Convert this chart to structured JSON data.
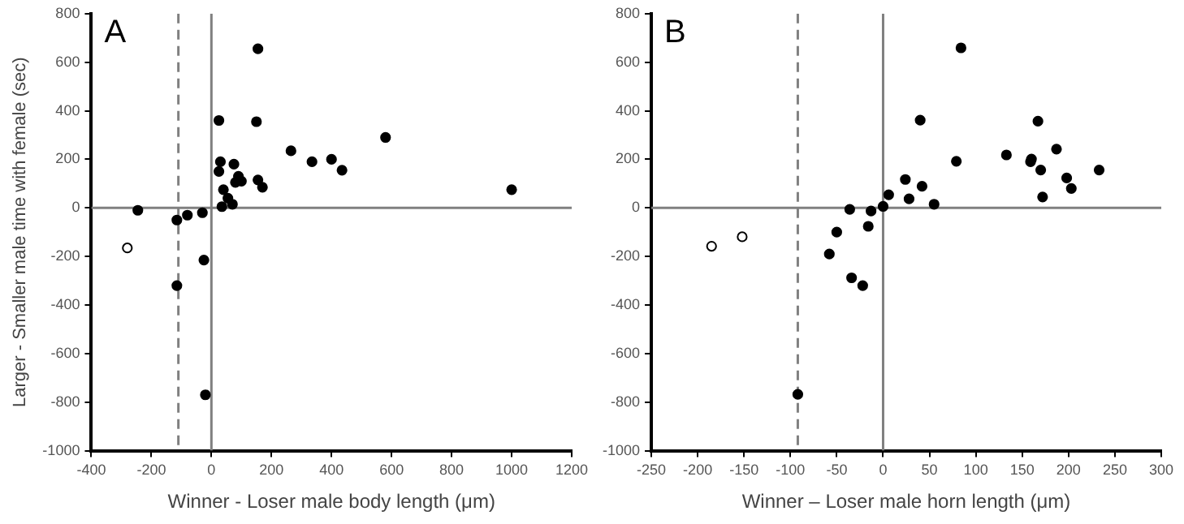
{
  "chart_data": [
    {
      "type": "scatter",
      "title": "A",
      "xlabel": "Winner - Loser male body length (μm)",
      "ylabel": "Larger - Smaller male time with female (sec)",
      "xlim": [
        -400,
        1200
      ],
      "xticks": [
        -400,
        -200,
        0,
        200,
        400,
        600,
        800,
        1000,
        1200
      ],
      "ylim": [
        -1000,
        800
      ],
      "yticks": [
        -1000,
        -800,
        -600,
        -400,
        -200,
        0,
        200,
        400,
        600,
        800
      ],
      "grid": false,
      "legend": false,
      "marker": "circle",
      "ref_lines": [
        {
          "axis": "x",
          "value": 0,
          "color": "#808080",
          "line_style": "solid"
        },
        {
          "axis": "y",
          "value": 0,
          "color": "#808080",
          "line_style": "solid"
        },
        {
          "axis": "x",
          "value": -110,
          "color": "#808080",
          "line_style": "dashed"
        }
      ],
      "series": [
        {
          "color": "#000000",
          "x": [
            -245,
            -115,
            -80,
            -30,
            -115,
            -25,
            -20,
            25,
            30,
            25,
            35,
            40,
            55,
            75,
            70,
            80,
            100,
            90,
            150,
            155,
            155,
            170,
            265,
            335,
            400,
            435,
            580,
            1000
          ],
          "values": [
            -10,
            -50,
            -30,
            -20,
            -320,
            -215,
            -770,
            360,
            190,
            150,
            5,
            75,
            40,
            180,
            15,
            105,
            110,
            130,
            355,
            655,
            115,
            85,
            235,
            190,
            200,
            155,
            290,
            75
          ]
        },
        {
          "color": "#ffffff",
          "x": [
            -280
          ],
          "values": [
            -165
          ]
        }
      ]
    },
    {
      "type": "scatter",
      "title": "B",
      "xlabel": "Winner – Loser male horn length (μm)",
      "xlim": [
        -250,
        300
      ],
      "xticks": [
        -250,
        -200,
        -150,
        -100,
        -50,
        0,
        50,
        100,
        150,
        200,
        250,
        300
      ],
      "ylim": [
        -1000,
        800
      ],
      "yticks": [
        -1000,
        -800,
        -600,
        -400,
        -200,
        0,
        200,
        400,
        600,
        800
      ],
      "grid": false,
      "legend": false,
      "marker": "circle",
      "ref_lines": [
        {
          "axis": "x",
          "value": 0,
          "color": "#808080",
          "line_style": "solid"
        },
        {
          "axis": "y",
          "value": 0,
          "color": "#808080",
          "line_style": "solid"
        },
        {
          "axis": "x",
          "value": -92,
          "color": "#808080",
          "line_style": "dashed"
        }
      ],
      "series": [
        {
          "color": "#000000",
          "x": [
            -92,
            -58,
            -50,
            -36,
            -34,
            -22,
            -16,
            -13,
            0,
            6,
            24,
            28,
            40,
            42,
            55,
            79,
            84,
            133,
            159,
            160,
            167,
            170,
            172,
            187,
            198,
            203,
            233
          ],
          "values": [
            -768,
            -190,
            -100,
            -6,
            -288,
            -320,
            -76,
            -13,
            6,
            54,
            117,
            37,
            361,
            89,
            15,
            192,
            659,
            218,
            190,
            201,
            357,
            156,
            45,
            242,
            123,
            80,
            156
          ]
        },
        {
          "color": "#ffffff",
          "x": [
            -185,
            -152
          ],
          "values": [
            -158,
            -119
          ]
        }
      ]
    }
  ]
}
